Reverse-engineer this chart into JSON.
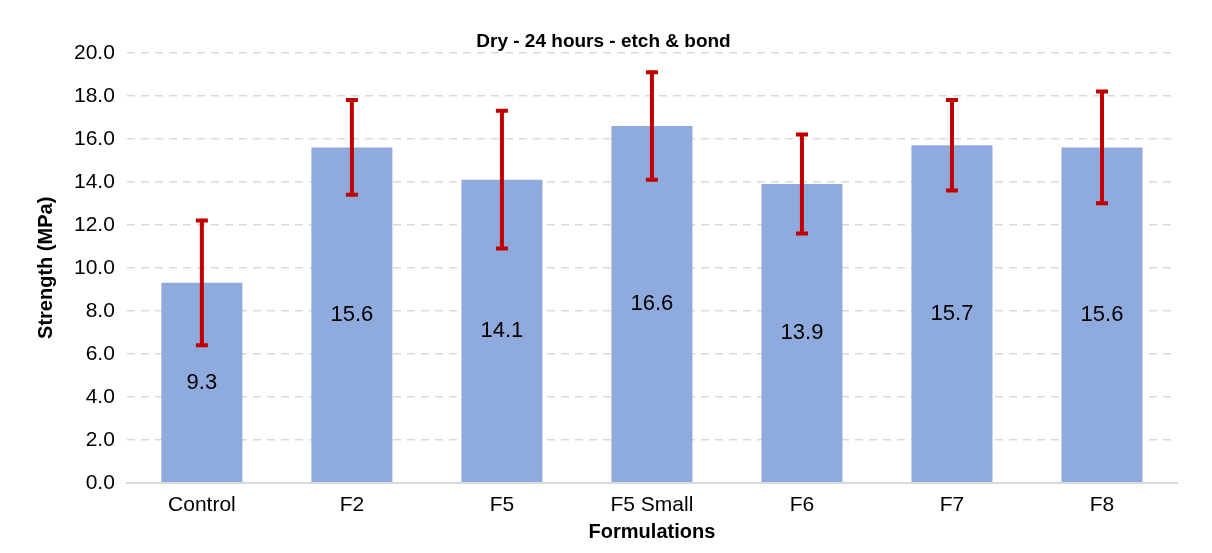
{
  "chart_data": {
    "type": "bar",
    "title": "Dry - 24 hours - etch & bond",
    "xlabel": "Formulations",
    "ylabel": "Strength (MPa)",
    "categories": [
      "Control",
      "F2",
      "F5",
      "F5 Small",
      "F6",
      "F7",
      "F8"
    ],
    "values": [
      9.3,
      15.6,
      14.1,
      16.6,
      13.9,
      15.7,
      15.6
    ],
    "errors": [
      2.9,
      2.2,
      3.2,
      2.5,
      2.3,
      2.1,
      2.6
    ],
    "color": "#8faadc",
    "ylim": [
      0,
      20
    ],
    "yticks": [
      {
        "value": 0,
        "label": "0.0"
      },
      {
        "value": 2,
        "label": "2.0"
      },
      {
        "value": 4,
        "label": "4.0"
      },
      {
        "value": 6,
        "label": "6.0"
      },
      {
        "value": 8,
        "label": "8.0"
      },
      {
        "value": 10,
        "label": "10.0"
      },
      {
        "value": 12,
        "label": "12.0"
      },
      {
        "value": 14,
        "label": "14.0"
      },
      {
        "value": 16,
        "label": "16.0"
      },
      {
        "value": 18,
        "label": "18.0"
      },
      {
        "value": 20,
        "label": "20.0"
      }
    ],
    "grid": "y",
    "data_labels": true,
    "legend": false
  }
}
